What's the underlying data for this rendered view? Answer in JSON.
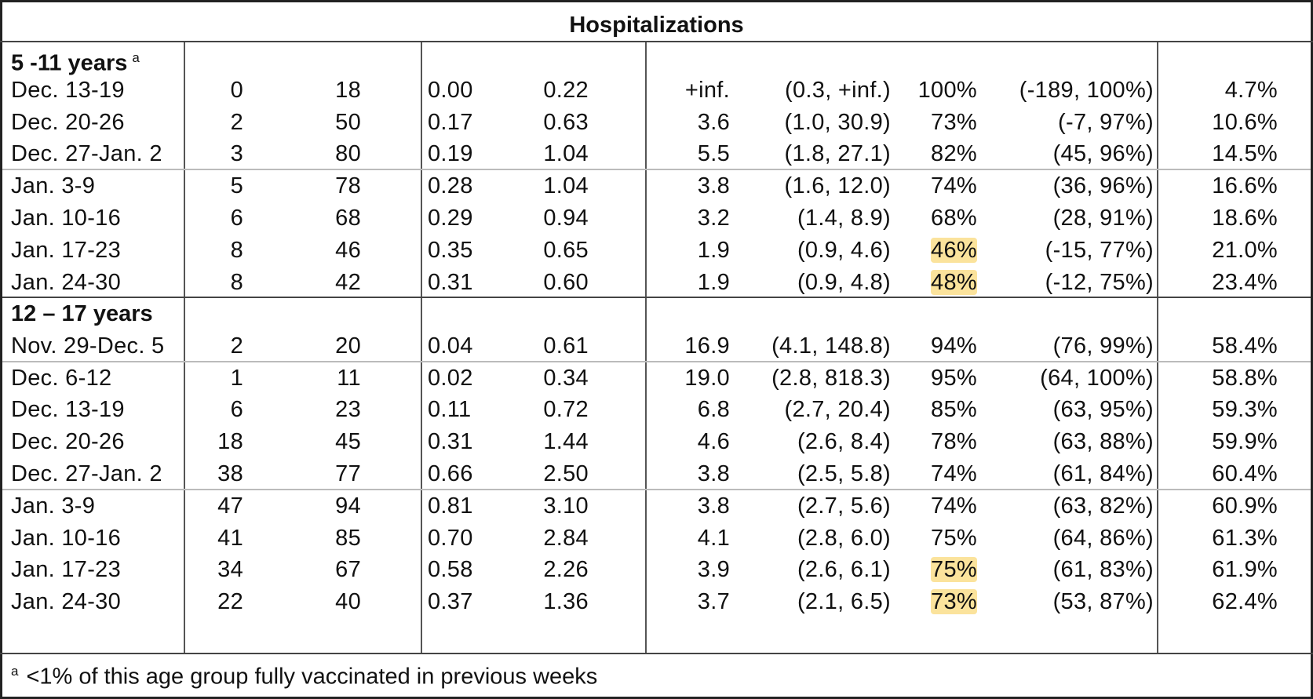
{
  "title": "Hospitalizations",
  "sections": [
    {
      "label": "5 -11 years",
      "marker": "a",
      "rows": [
        [
          "Dec. 13-19",
          "0",
          "18",
          "0.00",
          "0.22",
          "+inf.",
          "(0.3, +inf.)",
          "100%",
          "(-189, 100%)",
          "4.7%"
        ],
        [
          "Dec. 20-26",
          "2",
          "50",
          "0.17",
          "0.63",
          "3.6",
          "(1.0, 30.9)",
          "73%",
          "(-7, 97%)",
          "10.6%"
        ],
        [
          "Dec. 27-Jan. 2",
          "3",
          "80",
          "0.19",
          "1.04",
          "5.5",
          "(1.8, 27.1)",
          "82%",
          "(45, 96%)",
          "14.5%"
        ],
        [
          "Jan. 3-9",
          "5",
          "78",
          "0.28",
          "1.04",
          "3.8",
          "(1.6, 12.0)",
          "74%",
          "(36, 96%)",
          "16.6%"
        ],
        [
          "Jan. 10-16",
          "6",
          "68",
          "0.29",
          "0.94",
          "3.2",
          "(1.4, 8.9)",
          "68%",
          "(28, 91%)",
          "18.6%"
        ],
        [
          "Jan. 17-23",
          "8",
          "46",
          "0.35",
          "0.65",
          "1.9",
          "(0.9, 4.6)",
          "46%",
          "(-15, 77%)",
          "21.0%"
        ],
        [
          "Jan. 24-30",
          "8",
          "42",
          "0.31",
          "0.60",
          "1.9",
          "(0.9, 4.8)",
          "48%",
          "(-12, 75%)",
          "23.4%"
        ]
      ]
    },
    {
      "label": "12 – 17 years",
      "marker": "",
      "rows": [
        [
          "Nov. 29-Dec. 5",
          "2",
          "20",
          "0.04",
          "0.61",
          "16.9",
          "(4.1, 148.8)",
          "94%",
          "(76, 99%)",
          "58.4%"
        ],
        [
          "Dec. 6-12",
          "1",
          "11",
          "0.02",
          "0.34",
          "19.0",
          "(2.8, 818.3)",
          "95%",
          "(64, 100%)",
          "58.8%"
        ],
        [
          "Dec. 13-19",
          "6",
          "23",
          "0.11",
          "0.72",
          "6.8",
          "(2.7, 20.4)",
          "85%",
          "(63, 95%)",
          "59.3%"
        ],
        [
          "Dec. 20-26",
          "18",
          "45",
          "0.31",
          "1.44",
          "4.6",
          "(2.6, 8.4)",
          "78%",
          "(63, 88%)",
          "59.9%"
        ],
        [
          "Dec. 27-Jan. 2",
          "38",
          "77",
          "0.66",
          "2.50",
          "3.8",
          "(2.5, 5.8)",
          "74%",
          "(61, 84%)",
          "60.4%"
        ],
        [
          "Jan. 3-9",
          "47",
          "94",
          "0.81",
          "3.10",
          "3.8",
          "(2.7, 5.6)",
          "74%",
          "(63, 82%)",
          "60.9%"
        ],
        [
          "Jan. 10-16",
          "41",
          "85",
          "0.70",
          "2.84",
          "4.1",
          "(2.8, 6.0)",
          "75%",
          "(64, 86%)",
          "61.3%"
        ],
        [
          "Jan. 17-23",
          "34",
          "67",
          "0.58",
          "2.26",
          "3.9",
          "(2.6, 6.1)",
          "75%",
          "(61, 83%)",
          "61.9%"
        ],
        [
          "Jan. 24-30",
          "22",
          "40",
          "0.37",
          "1.36",
          "3.7",
          "(2.1, 6.5)",
          "73%",
          "(53, 87%)",
          "62.4%"
        ]
      ]
    }
  ],
  "highlight_color": "#fbe39c",
  "footnote": {
    "marker": "a",
    "text": "<1% of this age group fully vaccinated in previous weeks"
  }
}
